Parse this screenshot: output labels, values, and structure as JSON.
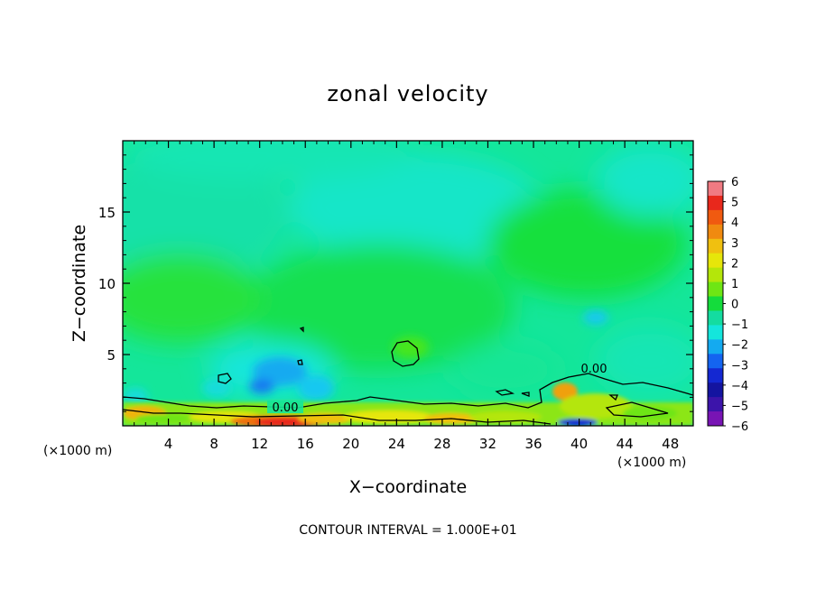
{
  "chart_data": {
    "type": "heatmap",
    "title": "zonal velocity",
    "xlabel": "X−coordinate",
    "ylabel": "Z−coordinate",
    "x_unit": "(×1000 m)",
    "x_unit_right": "(×1000 m)",
    "xlim": [
      0,
      50
    ],
    "ylim": [
      0,
      20
    ],
    "x_ticks": [
      4,
      8,
      12,
      16,
      20,
      24,
      28,
      32,
      36,
      40,
      44,
      48
    ],
    "x_tick_labels": [
      "4",
      "8",
      "12",
      "16",
      "20",
      "24",
      "28",
      "32",
      "36",
      "40",
      "44",
      "48"
    ],
    "y_ticks": [
      5,
      10,
      15
    ],
    "y_tick_labels": [
      "5",
      "10",
      "15"
    ],
    "colorbar": {
      "min": -6,
      "max": 6,
      "tick_labels": [
        "6",
        "5",
        "4",
        "3",
        "2",
        "1",
        "0",
        "−1",
        "−2",
        "−3",
        "−4",
        "−5",
        "−6"
      ],
      "colors": [
        "#f07a82",
        "#e8281c",
        "#f05a10",
        "#f08a10",
        "#f0c010",
        "#e6e60a",
        "#b4e60a",
        "#6ee614",
        "#14dc3c",
        "#14dca0",
        "#14e6dc",
        "#14aaf0",
        "#1464f0",
        "#1428d2",
        "#1414a0",
        "#3c14aa",
        "#7814b4"
      ]
    },
    "contour_labels": [
      "0.00",
      "0.00"
    ],
    "footer": "CONTOUR INTERVAL = 1.000E+01",
    "note_field": "field mostly between 0 and −1 m/s aloft; positive (up to ~5) near surface around x=8–20 and x=38–46; negative pockets near x=12–20, z=2–5 and x=40, z=7"
  }
}
